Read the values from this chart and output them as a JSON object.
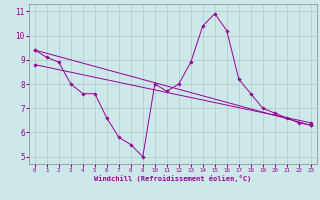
{
  "xlabel": "Windchill (Refroidissement éolien,°C)",
  "xlim": [
    -0.5,
    23.5
  ],
  "ylim": [
    4.7,
    11.3
  ],
  "yticks": [
    5,
    6,
    7,
    8,
    9,
    10,
    11
  ],
  "xticks": [
    0,
    1,
    2,
    3,
    4,
    5,
    6,
    7,
    8,
    9,
    10,
    11,
    12,
    13,
    14,
    15,
    16,
    17,
    18,
    19,
    20,
    21,
    22,
    23
  ],
  "bg_color": "#cce8e8",
  "line_color": "#990099",
  "grid_color": "#aacccc",
  "line1_x": [
    0,
    1,
    2,
    3,
    4,
    5,
    6,
    7,
    8,
    9,
    10,
    11,
    12,
    13,
    14,
    15,
    16,
    17,
    18,
    19,
    20,
    21,
    22,
    23
  ],
  "line1_y": [
    9.4,
    9.1,
    8.9,
    8.0,
    7.6,
    7.6,
    6.6,
    5.8,
    5.5,
    5.0,
    8.0,
    7.7,
    8.0,
    8.9,
    10.4,
    10.9,
    10.2,
    8.2,
    7.6,
    7.0,
    6.8,
    6.6,
    6.4,
    6.3
  ],
  "line2_x": [
    0,
    23
  ],
  "line2_y": [
    9.4,
    6.3
  ],
  "line3_x": [
    0,
    23
  ],
  "line3_y": [
    8.8,
    6.4
  ]
}
